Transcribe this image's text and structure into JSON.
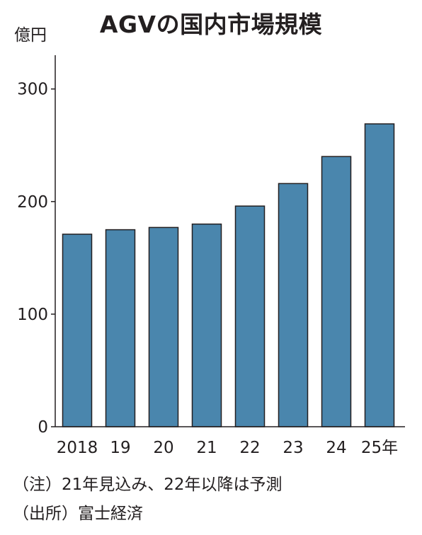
{
  "chart_data": {
    "type": "bar",
    "title": "AGVの国内市場規模",
    "ylabel": "億円",
    "categories": [
      "2018",
      "19",
      "20",
      "21",
      "22",
      "23",
      "24",
      "25年"
    ],
    "values": [
      171,
      175,
      177,
      180,
      196,
      216,
      240,
      269
    ],
    "yticks": [
      0,
      100,
      200,
      300
    ],
    "ylim": [
      0,
      330
    ],
    "bar_color": "#4a86ad",
    "grid": false
  },
  "notes": {
    "note1": "（注）21年見込み、22年以降は予測",
    "note2": "（出所）富士経済"
  }
}
